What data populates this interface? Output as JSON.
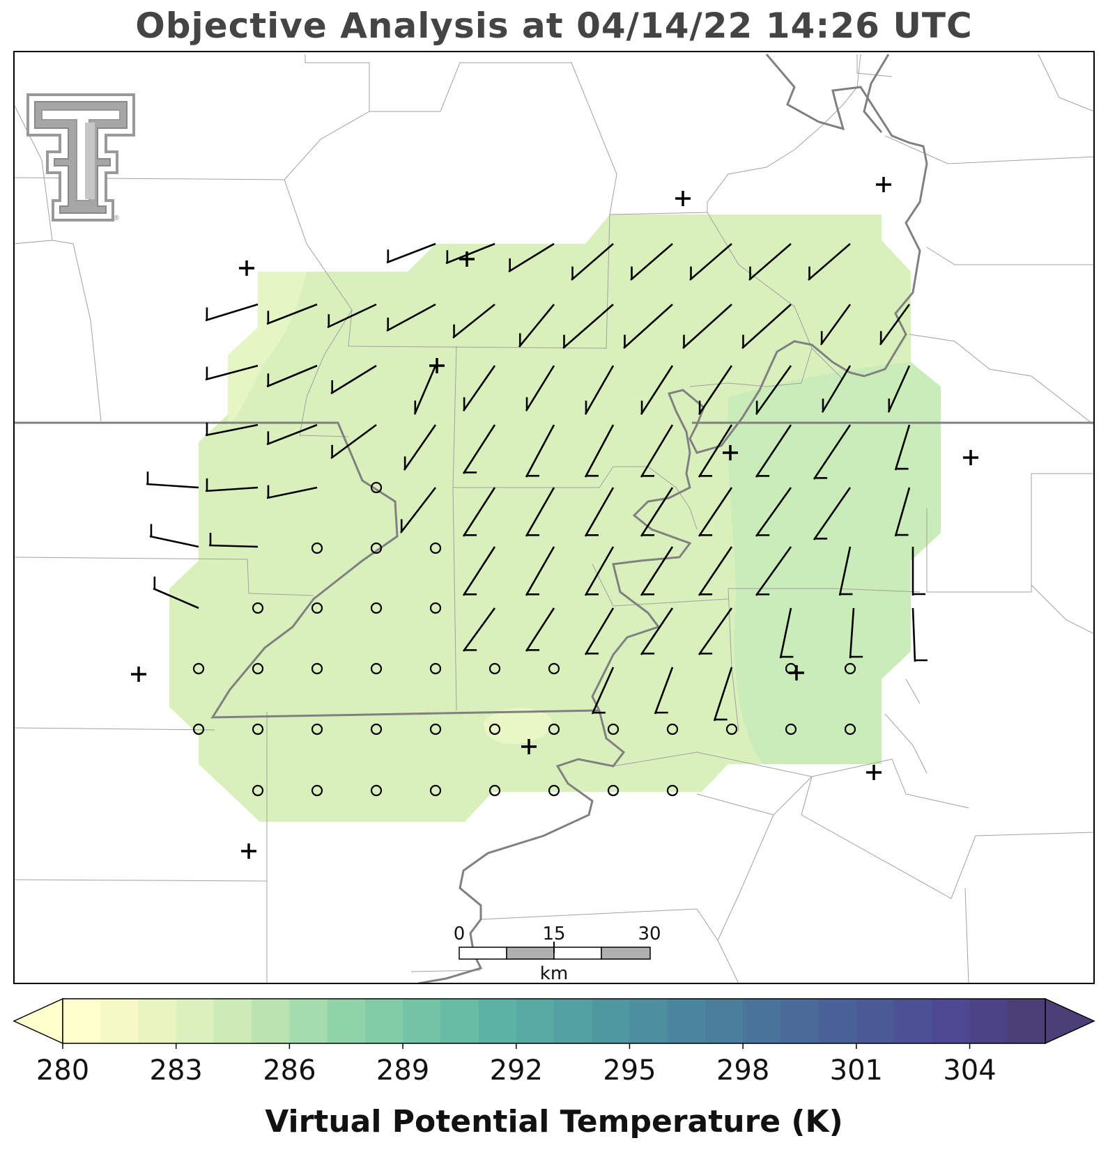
{
  "title": "Objective Analysis at 04/14/22 14:26 UTC",
  "logo": {
    "icon": "texas-tech-double-t-logo",
    "mark": "®"
  },
  "colorbar": {
    "title": "Virtual Potential Temperature (K)",
    "min": 280,
    "max": 306,
    "step": 1,
    "tick_values": [
      280,
      283,
      286,
      289,
      292,
      295,
      298,
      301,
      304
    ],
    "tick_labels": [
      "280",
      "283",
      "286",
      "289",
      "292",
      "295",
      "298",
      "301",
      "304"
    ],
    "extend": "both",
    "colormap": [
      "#ffffcc",
      "#f4f9c6",
      "#e9f5c0",
      "#dcf0bb",
      "#ccebb7",
      "#b9e4b2",
      "#a4dcad",
      "#8fd3a9",
      "#7fcca6",
      "#72c4a5",
      "#66bca4",
      "#5db3a3",
      "#57aaa2",
      "#53a1a1",
      "#5098a0",
      "#4e8f9f",
      "#4c869e",
      "#4b7d9d",
      "#4a749b",
      "#4a6b9a",
      "#4a6298",
      "#4b5996",
      "#4c5094",
      "#4d4891",
      "#4b4384",
      "#4a3f76"
    ]
  },
  "scale_bar": {
    "labels": [
      "0",
      "15",
      "30"
    ],
    "unit": "km"
  },
  "analysis_field": {
    "variable": "Virtual Potential Temperature",
    "units": "K",
    "typical_value": 283.5,
    "cool_patch": 282.5,
    "warm_patch": 284.5
  },
  "wind_barbs": {
    "units": "kt",
    "typical_speed": 10,
    "note_direction": "mostly southerly-southwesterly"
  },
  "station_markers": {
    "plus": "observation-site-icon",
    "circle": "calm-wind-icon"
  },
  "colors": {
    "border": "#808080",
    "county": "#a0a0a0",
    "frame": "#000000",
    "title": "#444444"
  }
}
